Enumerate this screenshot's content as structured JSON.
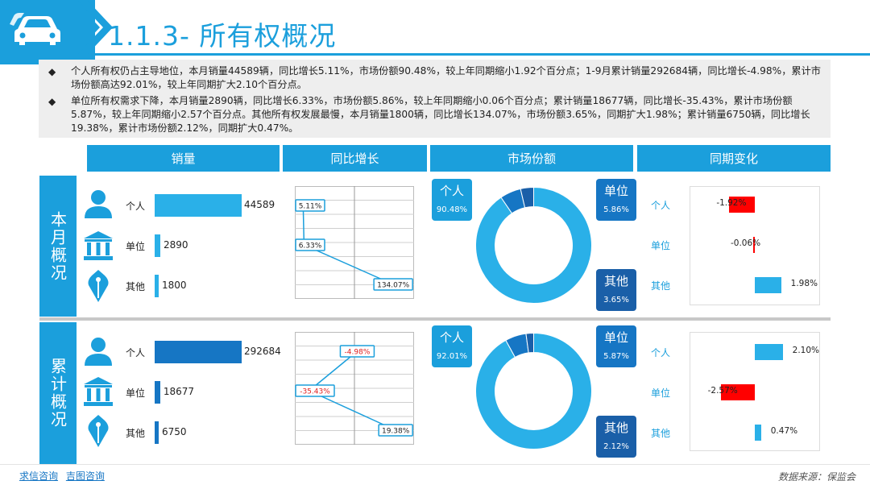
{
  "header": {
    "title": "1.1.3- 所有权概况",
    "icon": "car-icon"
  },
  "intro": {
    "bullets": [
      "个人所有权仍占主导地位，本月销量44589辆，同比增长5.11%，市场份额90.48%，较上年同期缩小1.92个百分点；1-9月累计销量292684辆，同比增长-4.98%，累计市场份额高达92.01%，较上年同期扩大2.10个百分点。",
      "单位所有权需求下降，本月销量2890辆，同比增长6.33%，市场份额5.86%，较上年同期缩小0.06个百分点；累计销量18677辆，同比增长-35.43%，累计市场份额5.87%，较上年同期缩小2.57个百分点。其他所有权发展最慢，本月销量1800辆，同比增长134.07%，市场份额3.65%，同期扩大1.98%；累计销量6750辆，同比增长19.38%，累计市场份额2.12%，同期扩大0.47%。"
    ]
  },
  "columns": [
    "销量",
    "同比增长",
    "市场份额",
    "同期变化"
  ],
  "rows": [
    "本月概况",
    "累计概况"
  ],
  "colors": {
    "accent": "#1b9fdc",
    "bar": "#2ab0e8",
    "dark": "#1676c4",
    "negative": "#ff0000",
    "donut_dark": "#1a5fa8"
  },
  "icons": [
    "person-icon",
    "bank-icon",
    "pen-nib-icon"
  ],
  "chart_data": [
    {
      "type": "bar",
      "section": "本月概况",
      "metric": "销量",
      "categories": [
        "个人",
        "单位",
        "其他"
      ],
      "values": [
        44589,
        2890,
        1800
      ],
      "value_labels": [
        "44589",
        "2890",
        "1800"
      ]
    },
    {
      "type": "line",
      "section": "本月概况",
      "metric": "同比增长",
      "categories": [
        "个人",
        "单位",
        "其他"
      ],
      "values": [
        5.11,
        6.33,
        134.07
      ],
      "value_labels": [
        "5.11%",
        "6.33%",
        "134.07%"
      ]
    },
    {
      "type": "pie",
      "section": "本月概况",
      "metric": "市场份额",
      "categories": [
        "个人",
        "单位",
        "其他"
      ],
      "values": [
        90.48,
        5.86,
        3.65
      ],
      "value_labels": [
        "90.48%",
        "5.86%",
        "3.65%"
      ]
    },
    {
      "type": "bar",
      "section": "本月概况",
      "metric": "同期变化",
      "categories": [
        "个人",
        "单位",
        "其他"
      ],
      "values": [
        -1.92,
        -0.06,
        1.98
      ],
      "value_labels": [
        "-1.92%",
        "-0.06%",
        "1.98%"
      ]
    },
    {
      "type": "bar",
      "section": "累计概况",
      "metric": "销量",
      "categories": [
        "个人",
        "单位",
        "其他"
      ],
      "values": [
        292684,
        18677,
        6750
      ],
      "value_labels": [
        "292684",
        "18677",
        "6750"
      ]
    },
    {
      "type": "line",
      "section": "累计概况",
      "metric": "同比增长",
      "categories": [
        "个人",
        "单位",
        "其他"
      ],
      "values": [
        -4.98,
        -35.43,
        19.38
      ],
      "value_labels": [
        "-4.98%",
        "-35.43%",
        "19.38%"
      ]
    },
    {
      "type": "pie",
      "section": "累计概况",
      "metric": "市场份额",
      "categories": [
        "个人",
        "单位",
        "其他"
      ],
      "values": [
        92.01,
        5.87,
        2.12
      ],
      "value_labels": [
        "92.01%",
        "5.87%",
        "2.12%"
      ]
    },
    {
      "type": "bar",
      "section": "累计概况",
      "metric": "同期变化",
      "categories": [
        "个人",
        "单位",
        "其他"
      ],
      "values": [
        2.1,
        -2.57,
        0.47
      ],
      "value_labels": [
        "2.10%",
        "-2.57%",
        "0.47%"
      ]
    }
  ],
  "footer": {
    "links": [
      "求信咨询",
      "吉图咨询"
    ],
    "source": "数据来源：保监会"
  }
}
